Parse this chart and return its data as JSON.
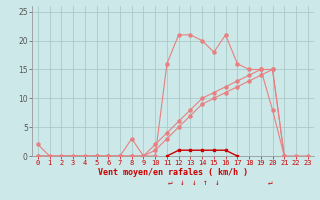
{
  "background_color": "#cce8e8",
  "grid_color": "#aacaca",
  "line_color_light": "#e88080",
  "line_color_dark": "#cc0000",
  "xlabel": "Vent moyen/en rafales ( km/h )",
  "xlabel_color": "#cc0000",
  "xlim": [
    -0.5,
    23.5
  ],
  "ylim": [
    0,
    26
  ],
  "yticks": [
    0,
    5,
    10,
    15,
    20,
    25
  ],
  "xticks": [
    0,
    1,
    2,
    3,
    4,
    5,
    6,
    7,
    8,
    9,
    10,
    11,
    12,
    13,
    14,
    15,
    16,
    17,
    18,
    19,
    20,
    21,
    22,
    23
  ],
  "series1_x": [
    0,
    1,
    2,
    3,
    4,
    5,
    6,
    7,
    8,
    9,
    10,
    11,
    12,
    13,
    14,
    15,
    16,
    17,
    18,
    19,
    20,
    21,
    22,
    23
  ],
  "series1_y": [
    2,
    0,
    0,
    0,
    0,
    0,
    0,
    0,
    3,
    0,
    0,
    16,
    21,
    21,
    20,
    18,
    21,
    16,
    15,
    15,
    8,
    0,
    0,
    0
  ],
  "series2_x": [
    0,
    5,
    6,
    7,
    8,
    9,
    10,
    11,
    12,
    13,
    14,
    15,
    16,
    17,
    18,
    19,
    20,
    21
  ],
  "series2_y": [
    0,
    0,
    0,
    0,
    0,
    0,
    1,
    3,
    5,
    7,
    9,
    10,
    11,
    12,
    13,
    14,
    15,
    0
  ],
  "series3_x": [
    0,
    5,
    6,
    7,
    8,
    9,
    10,
    11,
    12,
    13,
    14,
    15,
    16,
    17,
    18,
    19,
    20,
    21
  ],
  "series3_y": [
    0,
    0,
    0,
    0,
    0,
    0,
    2,
    4,
    6,
    8,
    10,
    11,
    12,
    13,
    14,
    15,
    15,
    0
  ],
  "series4_x": [
    11,
    12,
    13,
    14,
    15,
    16,
    17
  ],
  "series4_y": [
    0,
    1,
    1,
    1,
    1,
    1,
    0
  ],
  "annotations": [
    {
      "x": 11.3,
      "text": "↵"
    },
    {
      "x": 12.3,
      "text": "↓"
    },
    {
      "x": 13.3,
      "text": "↓"
    },
    {
      "x": 14.3,
      "text": "↑"
    },
    {
      "x": 15.3,
      "text": "↓"
    },
    {
      "x": 19.8,
      "text": "↵"
    }
  ]
}
